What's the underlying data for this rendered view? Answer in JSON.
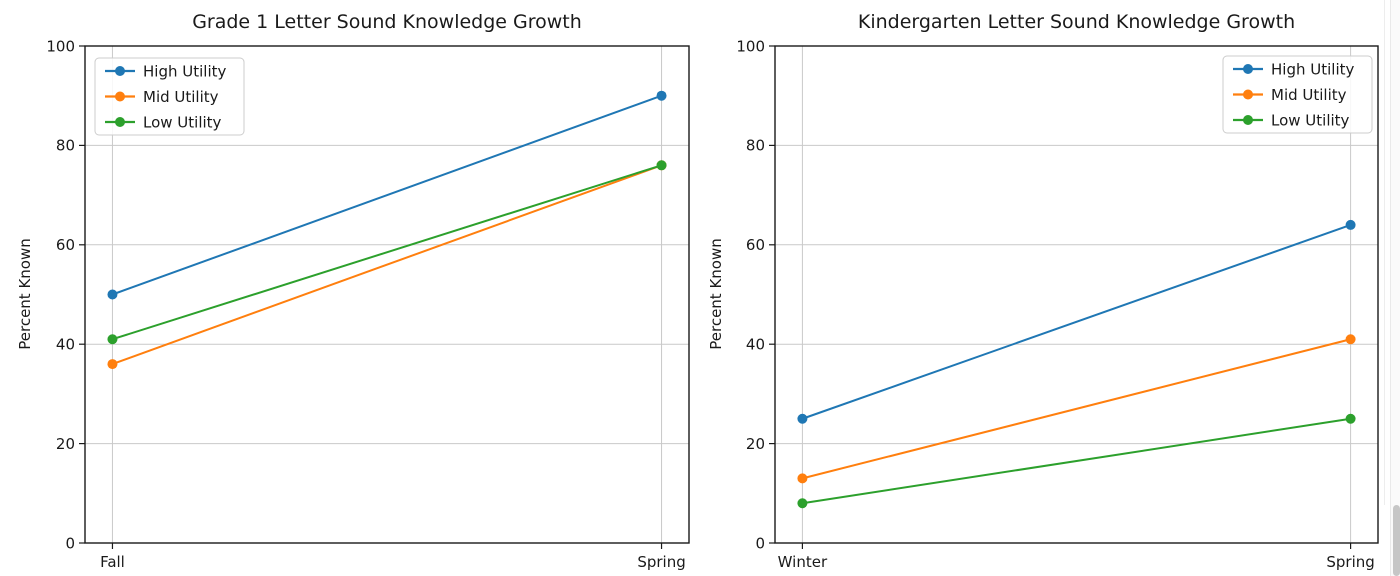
{
  "figure": {
    "background": "#ffffff",
    "text_color": "#1a1a1a",
    "grid_color": "#c9c9c9",
    "spine_color": "#1a1a1a"
  },
  "chart_data": [
    {
      "type": "line",
      "title": "Grade 1 Letter Sound Knowledge Growth",
      "categories": [
        "Fall",
        "Spring"
      ],
      "series": [
        {
          "name": "High Utility",
          "color": "#1f77b4",
          "values": [
            50,
            90
          ]
        },
        {
          "name": "Mid Utility",
          "color": "#ff7f0e",
          "values": [
            36,
            76
          ]
        },
        {
          "name": "Low Utility",
          "color": "#2ca02c",
          "values": [
            41,
            76
          ]
        }
      ],
      "xlabel": "",
      "ylabel": "Percent Known",
      "ylim": [
        0,
        100
      ],
      "yticks": [
        0,
        20,
        40,
        60,
        80,
        100
      ],
      "grid": true,
      "legend_position": "upper left"
    },
    {
      "type": "line",
      "title": "Kindergarten Letter Sound Knowledge Growth",
      "categories": [
        "Winter",
        "Spring"
      ],
      "series": [
        {
          "name": "High Utility",
          "color": "#1f77b4",
          "values": [
            25,
            64
          ]
        },
        {
          "name": "Mid Utility",
          "color": "#ff7f0e",
          "values": [
            13,
            41
          ]
        },
        {
          "name": "Low Utility",
          "color": "#2ca02c",
          "values": [
            8,
            25
          ]
        }
      ],
      "xlabel": "",
      "ylabel": "Percent Known",
      "ylim": [
        0,
        100
      ],
      "yticks": [
        0,
        20,
        40,
        60,
        80,
        100
      ],
      "grid": true,
      "legend_position": "upper right"
    }
  ]
}
